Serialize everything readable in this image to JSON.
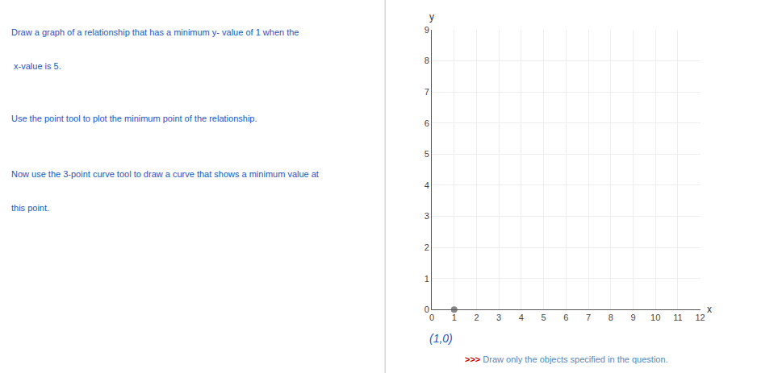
{
  "chart_data": {
    "type": "scatter",
    "x": [
      1
    ],
    "values": [
      0
    ],
    "color": "#888888",
    "xlabel": "x",
    "ylabel": "y",
    "xlim": [
      0,
      12
    ],
    "xticks": [
      0,
      1,
      2,
      3,
      4,
      5,
      6,
      7,
      8,
      9,
      10,
      11,
      12
    ],
    "ylim": [
      0,
      9
    ],
    "yticks": [
      0,
      1,
      2,
      3,
      4,
      5,
      6,
      7,
      8,
      9
    ],
    "grid": true,
    "annotations": [
      "Draw a graph of a relationship that has a minimum y- value of 1 when the",
      " x-value is 5.",
      "Use the point tool to plot the minimum point of the relationship.",
      "Now use the 3-point curve tool to draw a curve that shows a minimum value at",
      "this point.",
      "(1,0)",
      ">>>",
      " Draw only the objects specified in the question."
    ]
  }
}
